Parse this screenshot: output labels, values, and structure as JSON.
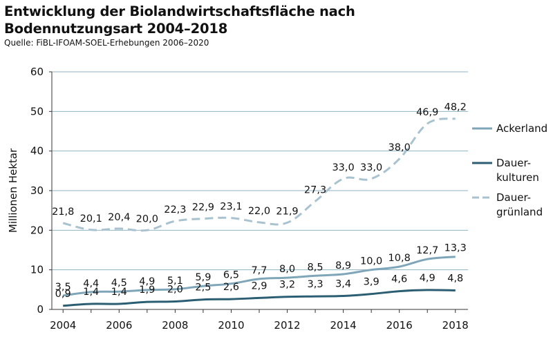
{
  "header": {
    "title_line1": "Entwicklung der Biolandwirtschaftsfläche nach",
    "title_line2": "Bodennutzungsart 2004–2018",
    "source": "Quelle: FiBL-IFOAM-SOEL-Erhebungen 2006–2020"
  },
  "chart_data": {
    "type": "line",
    "title": "Entwicklung der Biolandwirtschaftsfläche nach Bodennutzungsart 2004–2018",
    "ylabel": "Millionen Hektar",
    "xlabel": "",
    "ylim": [
      0,
      60
    ],
    "yticks": [
      0,
      10,
      20,
      30,
      40,
      50,
      60
    ],
    "xticks": [
      2004,
      2006,
      2008,
      2010,
      2012,
      2014,
      2016,
      2018
    ],
    "grid": "horizontal",
    "legend": "right",
    "x": [
      2004,
      2005,
      2006,
      2007,
      2008,
      2009,
      2010,
      2011,
      2012,
      2013,
      2014,
      2015,
      2016,
      2017,
      2018
    ],
    "series": [
      {
        "name": "Ackerland",
        "legend_lines": [
          "Ackerland"
        ],
        "color": "#7fa6b8",
        "dash": "solid",
        "values": [
          3.5,
          4.4,
          4.5,
          4.9,
          5.1,
          5.9,
          6.5,
          7.7,
          8.0,
          8.5,
          8.9,
          10.0,
          10.8,
          12.7,
          13.3
        ],
        "labels": [
          "3,5",
          "4,4",
          "4,5",
          "4,9",
          "5,1",
          "5,9",
          "6,5",
          "7,7",
          "8,0",
          "8,5",
          "8,9",
          "10,0",
          "10,8",
          "12,7",
          "13,3"
        ]
      },
      {
        "name": "Dauerkulturen",
        "legend_lines": [
          "Dauer-",
          "kulturen"
        ],
        "color": "#2b5e73",
        "dash": "solid",
        "values": [
          0.9,
          1.4,
          1.4,
          1.9,
          2.0,
          2.5,
          2.6,
          2.9,
          3.2,
          3.3,
          3.4,
          3.9,
          4.6,
          4.9,
          4.8
        ],
        "labels": [
          "0,9",
          "1,4",
          "1,4",
          "1,9",
          "2,0",
          "2,5",
          "2,6",
          "2,9",
          "3,2",
          "3,3",
          "3,4",
          "3,9",
          "4,6",
          "4,9",
          "4,8"
        ]
      },
      {
        "name": "Dauergrünland",
        "legend_lines": [
          "Dauer-",
          "grünland"
        ],
        "color": "#a9c2cf",
        "dash": "dashed",
        "values": [
          21.8,
          20.1,
          20.4,
          20.0,
          22.3,
          22.9,
          23.1,
          22.0,
          21.9,
          27.3,
          33.0,
          33.0,
          38.0,
          46.9,
          48.2
        ],
        "labels": [
          "21,8",
          "20,1",
          "20,4",
          "20,0",
          "22,3",
          "22,9",
          "23,1",
          "22,0",
          "21,9",
          "27,3",
          "33,0",
          "33,0",
          "38,0",
          "46,9",
          "48,2"
        ]
      }
    ]
  }
}
